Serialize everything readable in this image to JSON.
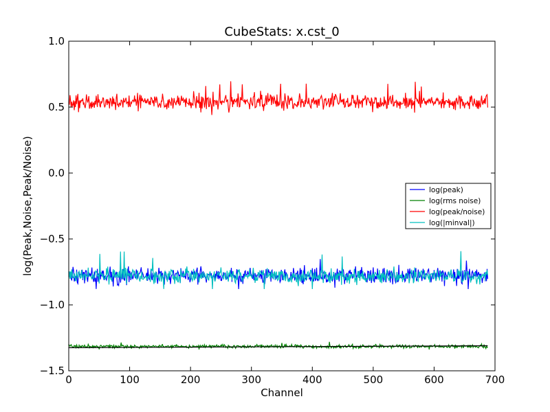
{
  "chart_data": {
    "type": "line",
    "title": "CubeStats: x.cst_0",
    "xlabel": "Channel",
    "ylabel": "log(Peak,Noise,Peak/Noise)",
    "xlim": [
      0,
      700
    ],
    "ylim": [
      -1.5,
      1.0
    ],
    "xticks": [
      0,
      100,
      200,
      300,
      400,
      500,
      600,
      700
    ],
    "xtick_labels": [
      "0",
      "100",
      "200",
      "300",
      "400",
      "500",
      "600",
      "700"
    ],
    "yticks": [
      -1.5,
      -1.0,
      -0.5,
      0.0,
      0.5,
      1.0
    ],
    "ytick_labels": [
      "−1.5",
      "−1.0",
      "−0.5",
      "0.0",
      "0.5",
      "1.0"
    ],
    "grid": false,
    "legend_position": "center-right",
    "channels": {
      "start": 0,
      "end": 688
    },
    "series": [
      {
        "name": "log(peak)",
        "color": "#0000ff",
        "mean": -0.78,
        "amplitude": 0.045,
        "max": -0.62,
        "min": -0.88,
        "seed": 11
      },
      {
        "name": "log(rms noise)",
        "color": "#008000",
        "mean": -1.315,
        "amplitude": 0.01,
        "max": -1.28,
        "min": -1.35,
        "seed": 23
      },
      {
        "name": "log(peak/noise)",
        "color": "#ff0000",
        "mean": 0.54,
        "amplitude": 0.045,
        "max": 0.7,
        "min": 0.44,
        "seed": 37
      },
      {
        "name": "log(|minval|)",
        "color": "#00bfbf",
        "mean": -0.78,
        "amplitude": 0.04,
        "max": -0.59,
        "min": -0.88,
        "seed": 51
      }
    ],
    "reference_line": {
      "color": "#000000",
      "y_start": -1.325,
      "y_end": -1.31
    }
  }
}
